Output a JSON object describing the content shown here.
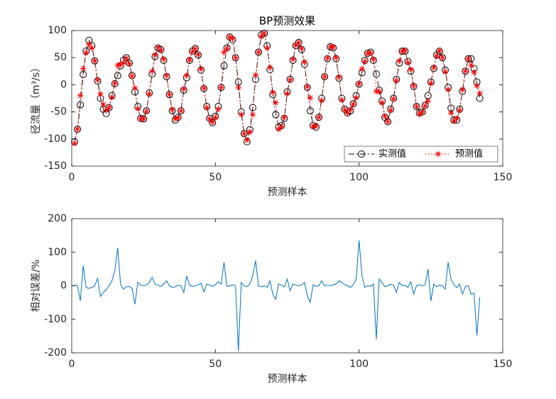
{
  "chart_data": [
    {
      "type": "line",
      "title": "BP预测效果",
      "xlabel": "预测样本",
      "ylabel": "径流量（m³/s）",
      "x": [
        1,
        2,
        3,
        4,
        5,
        6,
        7,
        8,
        9,
        10,
        11,
        12,
        13,
        14,
        15,
        16,
        17,
        18,
        19,
        20,
        21,
        22,
        23,
        24,
        25,
        26,
        27,
        28,
        29,
        30,
        31,
        32,
        33,
        34,
        35,
        36,
        37,
        38,
        39,
        40,
        41,
        42,
        43,
        44,
        45,
        46,
        47,
        48,
        49,
        50,
        51,
        52,
        53,
        54,
        55,
        56,
        57,
        58,
        59,
        60,
        61,
        62,
        63,
        64,
        65,
        66,
        67,
        68,
        69,
        70,
        71,
        72,
        73,
        74,
        75,
        76,
        77,
        78,
        79,
        80,
        81,
        82,
        83,
        84,
        85,
        86,
        87,
        88,
        89,
        90,
        91,
        92,
        93,
        94,
        95,
        96,
        97,
        98,
        99,
        100,
        101,
        102,
        103,
        104,
        105,
        106,
        107,
        108,
        109,
        110,
        111,
        112,
        113,
        114,
        115,
        116,
        117,
        118,
        119,
        120,
        121,
        122,
        123,
        124,
        125,
        126,
        127,
        128,
        129,
        130,
        131,
        132,
        133,
        134,
        135,
        136,
        137,
        138,
        139,
        140,
        141,
        142
      ],
      "series": [
        {
          "name": "实测值",
          "color": "#000000",
          "marker": "o",
          "line_style": "dashdot",
          "values": [
            -105,
            -82,
            -37,
            19,
            62,
            82,
            72,
            44,
            7,
            -25,
            -45,
            -53,
            -42,
            -20,
            2,
            17,
            35,
            45,
            50,
            40,
            17,
            -13,
            -40,
            -62,
            -63,
            -48,
            -15,
            20,
            52,
            68,
            65,
            45,
            15,
            -18,
            -48,
            -65,
            -60,
            -48,
            -10,
            13,
            45,
            62,
            67,
            55,
            27,
            -7,
            -40,
            -62,
            -70,
            -58,
            -40,
            -5,
            35,
            68,
            88,
            83,
            50,
            5,
            -50,
            -90,
            -105,
            -83,
            -42,
            10,
            60,
            92,
            95,
            72,
            28,
            -18,
            -55,
            -78,
            -75,
            -62,
            -13,
            10,
            45,
            72,
            78,
            65,
            38,
            -5,
            -48,
            -75,
            -78,
            -60,
            -25,
            15,
            48,
            70,
            68,
            48,
            12,
            -25,
            -45,
            -52,
            -48,
            -35,
            -20,
            1,
            22,
            45,
            58,
            60,
            45,
            20,
            -10,
            -30,
            -60,
            -68,
            -45,
            -25,
            10,
            40,
            62,
            62,
            43,
            25,
            -3,
            -40,
            -52,
            -50,
            -38,
            -20,
            5,
            30,
            55,
            62,
            50,
            27,
            -5,
            -43,
            -65,
            -65,
            -45,
            -12,
            25,
            48,
            48,
            30,
            5,
            -25
          ]
        },
        {
          "name": "预测值",
          "color": "#ff0000",
          "marker": "*",
          "line_style": "dotted",
          "values": [
            -108,
            -82,
            -20,
            30,
            59,
            75,
            68,
            44,
            9,
            -17,
            -36,
            -47,
            -42,
            -23,
            3,
            36,
            37,
            41,
            49,
            39,
            16,
            -6,
            -44,
            -63,
            -63,
            -49,
            -17,
            25,
            55,
            69,
            64,
            47,
            17,
            -18,
            -46,
            -63,
            -61,
            -48,
            -8,
            17,
            46,
            61,
            67,
            56,
            29,
            -6,
            -42,
            -63,
            -69,
            -60,
            -45,
            -5,
            60,
            67,
            88,
            85,
            50,
            -5,
            -55,
            -90,
            -102,
            -87,
            -55,
            18,
            60,
            89,
            95,
            68,
            32,
            -14,
            -33,
            -82,
            -77,
            -60,
            -16,
            9,
            47,
            73,
            78,
            67,
            42,
            -4,
            -24,
            -77,
            -76,
            -60,
            -29,
            15,
            49,
            70,
            70,
            50,
            14,
            -28,
            -46,
            -52,
            -46,
            -36,
            -24,
            2,
            29,
            43,
            58,
            59,
            47,
            -12,
            -12,
            -33,
            -58,
            -68,
            -47,
            -26,
            8,
            44,
            62,
            63,
            41,
            28,
            -2,
            -40,
            -54,
            -50,
            -39,
            -30,
            3,
            32,
            53,
            63,
            50,
            24,
            -9,
            -52,
            -67,
            -62,
            -47,
            -9,
            25,
            48,
            36,
            23,
            -2,
            -16
          ]
        }
      ],
      "xlim": [
        0,
        150
      ],
      "xticks": [
        0,
        50,
        100,
        150
      ],
      "ylim": [
        -150,
        100
      ],
      "yticks": [
        -150,
        -100,
        -50,
        0,
        50,
        100
      ],
      "legend": "southeast"
    },
    {
      "type": "line",
      "xlabel": "预测样本",
      "ylabel": "相对误差/%",
      "x": [
        1,
        2,
        3,
        4,
        5,
        6,
        7,
        8,
        9,
        10,
        11,
        12,
        13,
        14,
        15,
        16,
        17,
        18,
        19,
        20,
        21,
        22,
        23,
        24,
        25,
        26,
        27,
        28,
        29,
        30,
        31,
        32,
        33,
        34,
        35,
        36,
        37,
        38,
        39,
        40,
        41,
        42,
        43,
        44,
        45,
        46,
        47,
        48,
        49,
        50,
        51,
        52,
        53,
        54,
        55,
        56,
        57,
        58,
        59,
        60,
        61,
        62,
        63,
        64,
        65,
        66,
        67,
        68,
        69,
        70,
        71,
        72,
        73,
        74,
        75,
        76,
        77,
        78,
        79,
        80,
        81,
        82,
        83,
        84,
        85,
        86,
        87,
        88,
        89,
        90,
        91,
        92,
        93,
        94,
        95,
        96,
        97,
        98,
        99,
        100,
        101,
        102,
        103,
        104,
        105,
        106,
        107,
        108,
        109,
        110,
        111,
        112,
        113,
        114,
        115,
        116,
        117,
        118,
        119,
        120,
        121,
        122,
        123,
        124,
        125,
        126,
        127,
        128,
        129,
        130,
        131,
        132,
        133,
        134,
        135,
        136,
        137,
        138,
        139,
        140,
        141,
        142
      ],
      "series": [
        {
          "color": "#0072bd",
          "line_style": "solid",
          "values": [
            3,
            0,
            -45,
            60,
            -5,
            -8,
            -5,
            0,
            22,
            -32,
            -20,
            -12,
            0,
            15,
            45,
            113,
            5,
            -10,
            -3,
            -2,
            -8,
            -55,
            10,
            2,
            0,
            2,
            10,
            25,
            5,
            2,
            -2,
            5,
            15,
            0,
            -5,
            -3,
            2,
            0,
            -20,
            28,
            3,
            -2,
            0,
            2,
            8,
            -18,
            5,
            2,
            -2,
            3,
            12,
            5,
            70,
            -2,
            0,
            3,
            0,
            -195,
            10,
            0,
            -3,
            5,
            30,
            75,
            0,
            -3,
            0,
            -5,
            15,
            -25,
            -40,
            5,
            2,
            -3,
            20,
            -15,
            5,
            2,
            0,
            3,
            10,
            -30,
            -50,
            3,
            -2,
            0,
            15,
            0,
            2,
            0,
            3,
            5,
            15,
            10,
            3,
            0,
            -5,
            3,
            20,
            135,
            30,
            -5,
            0,
            -2,
            5,
            -160,
            20,
            10,
            -3,
            0,
            5,
            2,
            -20,
            10,
            0,
            2,
            -5,
            12,
            -25,
            0,
            3,
            0,
            3,
            50,
            -45,
            5,
            -3,
            2,
            0,
            -10,
            70,
            20,
            3,
            -5,
            5,
            -25,
            -2,
            0,
            -25,
            -22,
            -148,
            -35
          ]
        }
      ],
      "xlim": [
        0,
        150
      ],
      "xticks": [
        0,
        50,
        100,
        150
      ],
      "ylim": [
        -200,
        200
      ],
      "yticks": [
        -200,
        -100,
        0,
        100,
        200
      ]
    }
  ]
}
